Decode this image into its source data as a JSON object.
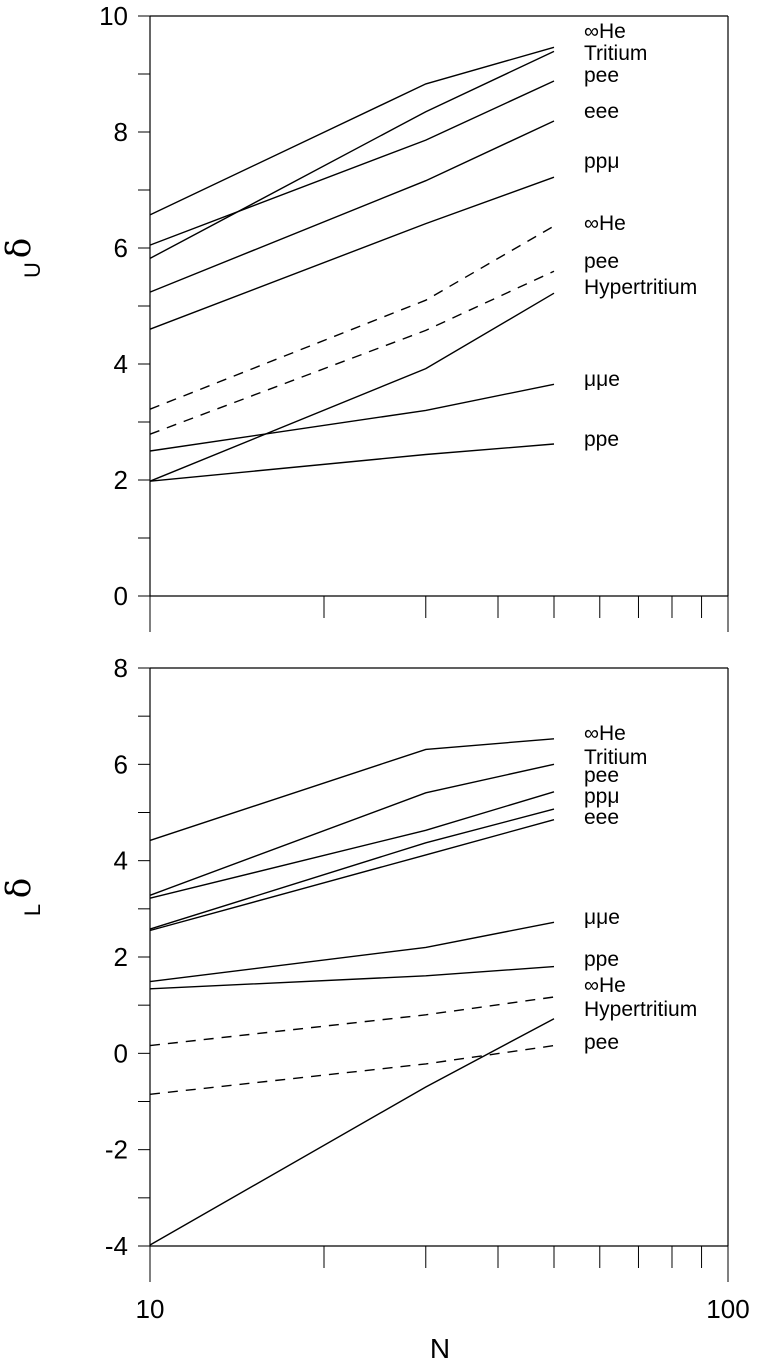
{
  "chart_data": [
    {
      "type": "line",
      "xscale": "log",
      "xlim": [
        10,
        100
      ],
      "ylim": [
        0,
        10
      ],
      "yticks": [
        0,
        2,
        4,
        6,
        8,
        10
      ],
      "ylabel": "δ",
      "ylabel_sub": "U",
      "x": [
        10,
        30,
        50
      ],
      "series": [
        {
          "name": "∞He",
          "style": "solid",
          "values": [
            6.57,
            8.83,
            9.46
          ]
        },
        {
          "name": "Tritium",
          "style": "solid",
          "values": [
            5.82,
            8.35,
            9.39
          ]
        },
        {
          "name": "pee",
          "style": "solid",
          "values": [
            6.05,
            7.86,
            8.88
          ]
        },
        {
          "name": "eee",
          "style": "solid",
          "values": [
            5.24,
            7.16,
            8.19
          ]
        },
        {
          "name": "ppμ",
          "style": "solid",
          "values": [
            4.6,
            6.42,
            7.22
          ]
        },
        {
          "name": "∞He",
          "style": "dashed",
          "values": [
            3.22,
            5.1,
            6.38
          ]
        },
        {
          "name": "pee",
          "style": "dashed",
          "values": [
            2.79,
            4.58,
            5.6
          ]
        },
        {
          "name": "Hypertritium",
          "style": "solid",
          "values": [
            1.98,
            3.92,
            5.22
          ]
        },
        {
          "name": "μμe",
          "style": "solid",
          "values": [
            2.5,
            3.2,
            3.65
          ]
        },
        {
          "name": "ppe",
          "style": "solid",
          "values": [
            1.98,
            2.44,
            2.62
          ]
        }
      ]
    },
    {
      "type": "line",
      "xscale": "log",
      "xlim": [
        10,
        100
      ],
      "ylim": [
        -4,
        8
      ],
      "yticks": [
        -4,
        -2,
        0,
        2,
        4,
        6,
        8
      ],
      "xticks": [
        10,
        100
      ],
      "xlabel": "N",
      "ylabel": "δ",
      "ylabel_sub": "L",
      "x": [
        10,
        30,
        50
      ],
      "series": [
        {
          "name": "∞He",
          "style": "solid",
          "values": [
            4.42,
            6.31,
            6.53
          ]
        },
        {
          "name": "Tritium",
          "style": "solid",
          "values": [
            3.28,
            5.41,
            6.0
          ]
        },
        {
          "name": "pee",
          "style": "solid",
          "values": [
            3.22,
            4.63,
            5.43
          ]
        },
        {
          "name": "ppμ",
          "style": "solid",
          "values": [
            2.58,
            4.37,
            5.07
          ]
        },
        {
          "name": "eee",
          "style": "solid",
          "values": [
            2.55,
            4.12,
            4.85
          ]
        },
        {
          "name": "μμe",
          "style": "solid",
          "values": [
            1.49,
            2.2,
            2.72
          ]
        },
        {
          "name": "ppe",
          "style": "solid",
          "values": [
            1.34,
            1.61,
            1.8
          ]
        },
        {
          "name": "∞He",
          "style": "dashed",
          "values": [
            0.16,
            0.8,
            1.17
          ]
        },
        {
          "name": "Hypertritium",
          "style": "solid",
          "values": [
            -3.98,
            -0.7,
            0.72
          ]
        },
        {
          "name": "pee",
          "style": "dashed",
          "values": [
            -0.85,
            -0.22,
            0.16
          ]
        }
      ]
    }
  ]
}
